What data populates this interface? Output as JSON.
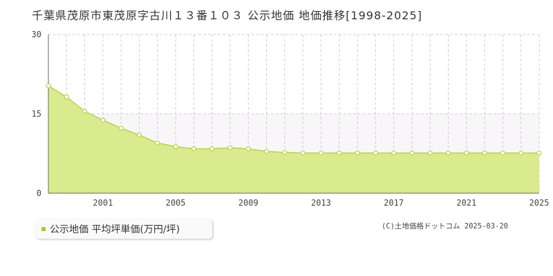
{
  "title": "千葉県茂原市東茂原字古川１３番１０３ 公示地価 地価推移[1998-2025]",
  "legend": {
    "label": "公示地価 平均坪単価(万円/坪)"
  },
  "credit": "(C)土地価格ドットコム 2025-03-20",
  "colors": {
    "fill": "#d9eb8e",
    "line": "#b5d34a",
    "marker_fill": "#ffffff",
    "marker_stroke": "#b5d34a",
    "legend_swatch": "#a6c93a"
  },
  "chart_data": {
    "type": "area",
    "title": "",
    "xlabel": "",
    "ylabel": "",
    "x": [
      1998,
      1999,
      2000,
      2001,
      2002,
      2003,
      2004,
      2005,
      2006,
      2007,
      2008,
      2009,
      2010,
      2011,
      2012,
      2013,
      2014,
      2015,
      2016,
      2017,
      2018,
      2019,
      2020,
      2021,
      2022,
      2023,
      2024,
      2025
    ],
    "series": [
      {
        "name": "公示地価 平均坪単価(万円/坪)",
        "values": [
          20.3,
          18.2,
          15.5,
          13.8,
          12.3,
          11.0,
          9.5,
          8.8,
          8.4,
          8.4,
          8.6,
          8.4,
          7.9,
          7.7,
          7.6,
          7.6,
          7.6,
          7.6,
          7.6,
          7.6,
          7.6,
          7.6,
          7.6,
          7.6,
          7.6,
          7.6,
          7.6,
          7.6
        ]
      }
    ],
    "xlim": [
      1998,
      2025
    ],
    "ylim": [
      0,
      30
    ],
    "y_ticks": [
      "0",
      "15",
      "30"
    ],
    "x_ticks": [
      "2001",
      "2005",
      "2009",
      "2013",
      "2017",
      "2021",
      "2025"
    ],
    "grid": true,
    "legend_position": "bottom-left"
  }
}
